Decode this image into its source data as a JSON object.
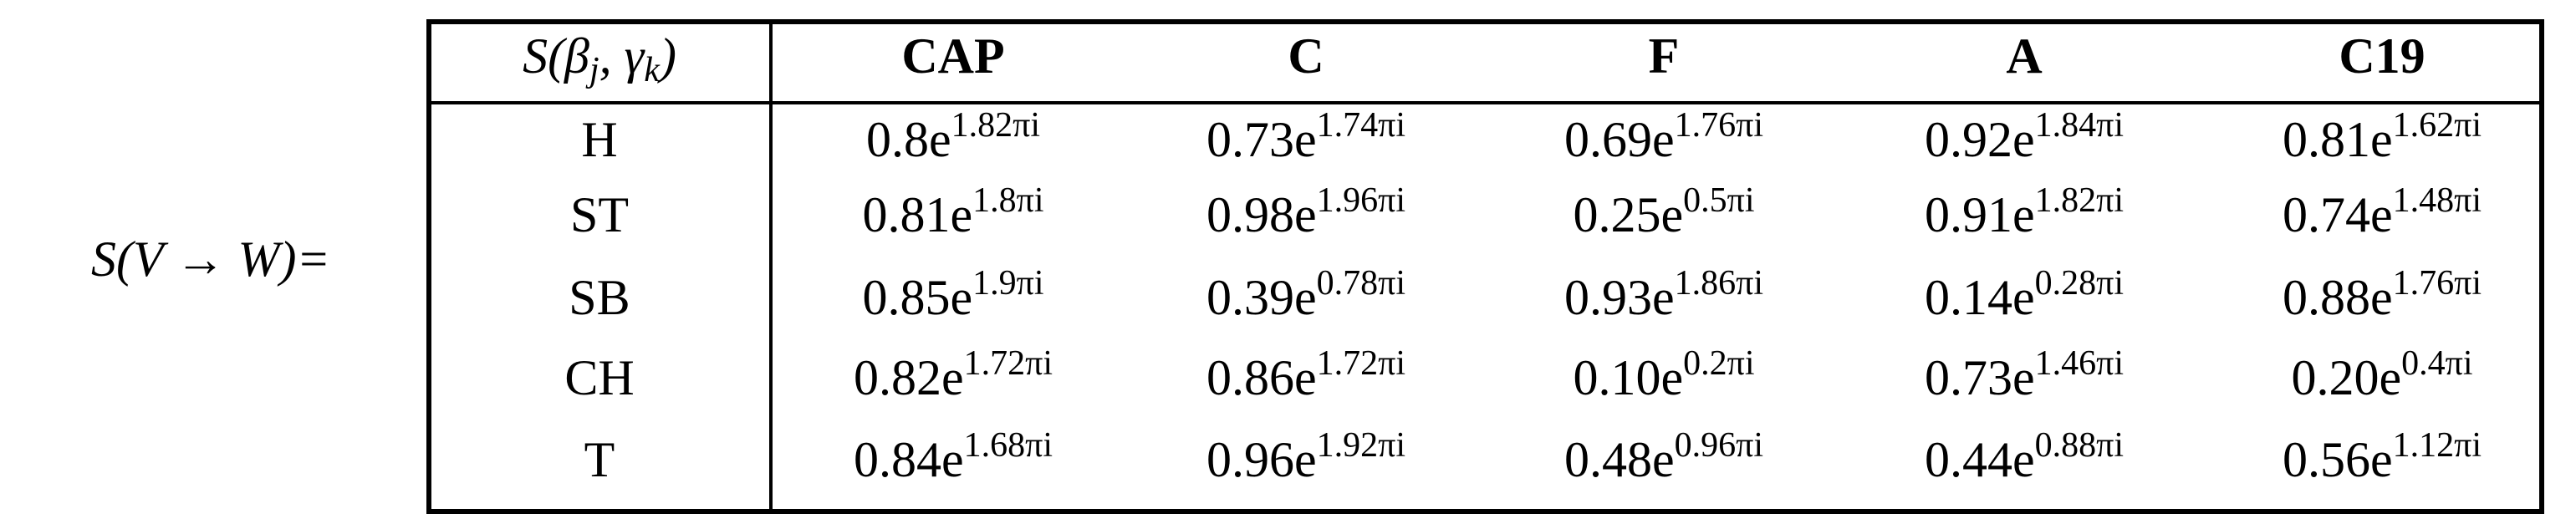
{
  "label": "S(V → W)=",
  "table": {
    "corner": [
      "S(β",
      "j",
      ", γ",
      "k",
      ")"
    ],
    "columns": [
      "CAP",
      "C",
      "F",
      "A",
      "C19"
    ],
    "rows": [
      {
        "label": "H",
        "cells": [
          {
            "base": "0.8e",
            "exp": "1.82πi"
          },
          {
            "base": "0.73e",
            "exp": "1.74πi"
          },
          {
            "base": "0.69e",
            "exp": "1.76πi"
          },
          {
            "base": "0.92e",
            "exp": "1.84πi"
          },
          {
            "base": "0.81e",
            "exp": "1.62πi"
          }
        ]
      },
      {
        "label": "ST",
        "cells": [
          {
            "base": "0.81e",
            "exp": "1.8πi"
          },
          {
            "base": "0.98e",
            "exp": "1.96πi"
          },
          {
            "base": "0.25e",
            "exp": "0.5πi"
          },
          {
            "base": "0.91e",
            "exp": "1.82πi"
          },
          {
            "base": "0.74e",
            "exp": "1.48πi"
          }
        ]
      },
      {
        "label": "SB",
        "cells": [
          {
            "base": "0.85e",
            "exp": "1.9πi"
          },
          {
            "base": "0.39e",
            "exp": "0.78πi"
          },
          {
            "base": "0.93e",
            "exp": "1.86πi"
          },
          {
            "base": "0.14e",
            "exp": "0.28πi"
          },
          {
            "base": "0.88e",
            "exp": "1.76πi"
          }
        ]
      },
      {
        "label": "CH",
        "cells": [
          {
            "base": "0.82e",
            "exp": "1.72πi"
          },
          {
            "base": "0.86e",
            "exp": "1.72πi"
          },
          {
            "base": "0.10e",
            "exp": "0.2πi"
          },
          {
            "base": "0.73e",
            "exp": "1.46πi"
          },
          {
            "base": "0.20e",
            "exp": "0.4πi"
          }
        ]
      },
      {
        "label": "T",
        "cells": [
          {
            "base": "0.84e",
            "exp": "1.68πi"
          },
          {
            "base": "0.96e",
            "exp": "1.92πi"
          },
          {
            "base": "0.48e",
            "exp": "0.96πi"
          },
          {
            "base": "0.44e",
            "exp": "0.88πi"
          },
          {
            "base": "0.56e",
            "exp": "1.12πi"
          }
        ]
      }
    ]
  }
}
